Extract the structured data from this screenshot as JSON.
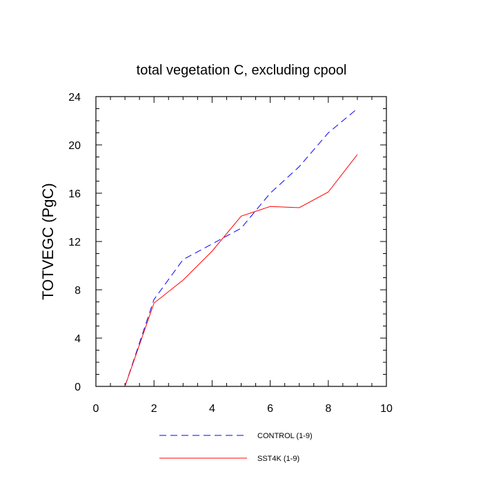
{
  "chart_data": {
    "type": "line",
    "title": "total vegetation C, excluding cpool",
    "xlabel": "",
    "ylabel": "TOTVEGC  (PgC)",
    "xlim": [
      0,
      10
    ],
    "ylim": [
      0,
      24
    ],
    "xticks": [
      0,
      2,
      4,
      6,
      8,
      10
    ],
    "yticks": [
      0,
      4,
      8,
      12,
      16,
      20,
      24
    ],
    "grid": false,
    "legend_position": "bottom",
    "series": [
      {
        "name": "CONTROL (1-9)",
        "color": "#0000ff",
        "dash": "dashed",
        "x": [
          1,
          2,
          3,
          4,
          5,
          6,
          7,
          8,
          9
        ],
        "y": [
          0,
          7.2,
          10.5,
          11.8,
          13.1,
          16.0,
          18.2,
          21.0,
          23.0
        ]
      },
      {
        "name": "SST4K (1-9)",
        "color": "#ff0000",
        "dash": "solid",
        "x": [
          1,
          2,
          3,
          4,
          5,
          6,
          7,
          8,
          9
        ],
        "y": [
          0,
          6.9,
          8.8,
          11.2,
          14.1,
          14.9,
          14.8,
          16.1,
          19.2
        ]
      }
    ]
  }
}
